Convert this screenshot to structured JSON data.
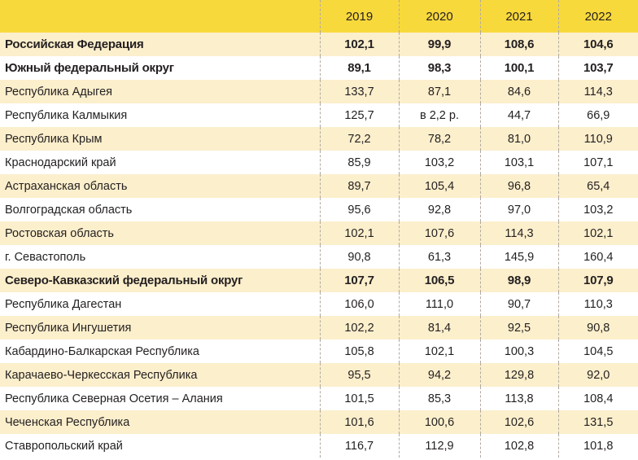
{
  "table": {
    "header": {
      "label": "",
      "years": [
        "2019",
        "2020",
        "2021",
        "2022"
      ]
    },
    "colors": {
      "header_bg": "#f8d93c",
      "shaded_row_bg": "#fcefcc",
      "plain_row_bg": "#ffffff",
      "text": "#231f20"
    },
    "rows": [
      {
        "name": "Российская Федерация",
        "values": [
          "102,1",
          "99,9",
          "108,6",
          "104,6"
        ],
        "bold": true
      },
      {
        "name": "Южный федеральный округ",
        "values": [
          "89,1",
          "98,3",
          "100,1",
          "103,7"
        ],
        "bold": true
      },
      {
        "name": "Республика Адыгея",
        "values": [
          "133,7",
          "87,1",
          "84,6",
          "114,3"
        ],
        "bold": false
      },
      {
        "name": "Республика Калмыкия",
        "values": [
          "125,7",
          "в 2,2 р.",
          "44,7",
          "66,9"
        ],
        "bold": false
      },
      {
        "name": "Республика Крым",
        "values": [
          "72,2",
          "78,2",
          "81,0",
          "110,9"
        ],
        "bold": false
      },
      {
        "name": "Краснодарский край",
        "values": [
          "85,9",
          "103,2",
          "103,1",
          "107,1"
        ],
        "bold": false
      },
      {
        "name": "Астраханская область",
        "values": [
          "89,7",
          "105,4",
          "96,8",
          "65,4"
        ],
        "bold": false
      },
      {
        "name": "Волгоградская область",
        "values": [
          "95,6",
          "92,8",
          "97,0",
          "103,2"
        ],
        "bold": false
      },
      {
        "name": "Ростовская область",
        "values": [
          "102,1",
          "107,6",
          "114,3",
          "102,1"
        ],
        "bold": false
      },
      {
        "name": "г. Севастополь",
        "values": [
          "90,8",
          "61,3",
          "145,9",
          "160,4"
        ],
        "bold": false
      },
      {
        "name": "Северо-Кавказский федеральный округ",
        "values": [
          "107,7",
          "106,5",
          "98,9",
          "107,9"
        ],
        "bold": true
      },
      {
        "name": "Республика Дагестан",
        "values": [
          "106,0",
          "111,0",
          "90,7",
          "110,3"
        ],
        "bold": false
      },
      {
        "name": "Республика Ингушетия",
        "values": [
          "102,2",
          "81,4",
          "92,5",
          "90,8"
        ],
        "bold": false
      },
      {
        "name": "Кабардино-Балкарская Республика",
        "values": [
          "105,8",
          "102,1",
          "100,3",
          "104,5"
        ],
        "bold": false
      },
      {
        "name": "Карачаево-Черкесская Республика",
        "values": [
          "95,5",
          "94,2",
          "129,8",
          "92,0"
        ],
        "bold": false
      },
      {
        "name": "Республика Северная Осетия – Алания",
        "values": [
          "101,5",
          "85,3",
          "113,8",
          "108,4"
        ],
        "bold": false
      },
      {
        "name": "Чеченская Республика",
        "values": [
          "101,6",
          "100,6",
          "102,6",
          "131,5"
        ],
        "bold": false
      },
      {
        "name": "Ставропольский край",
        "values": [
          "116,7",
          "112,9",
          "102,8",
          "101,8"
        ],
        "bold": false
      }
    ]
  }
}
